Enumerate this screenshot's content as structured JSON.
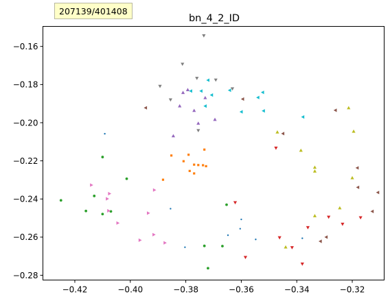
{
  "badge": {
    "text": "207139/401408"
  },
  "chart_data": {
    "type": "scatter",
    "title": "bn_4_2_ID",
    "xlabel": "",
    "ylabel": "",
    "xlim": [
      -0.4315,
      -0.3085
    ],
    "ylim": [
      -0.2825,
      -0.1495
    ],
    "xticks": [
      -0.42,
      -0.4,
      -0.38,
      -0.36,
      -0.34,
      -0.32
    ],
    "xtick_labels": [
      "−0.42",
      "−0.40",
      "−0.38",
      "−0.36",
      "−0.34",
      "−0.32"
    ],
    "yticks": [
      -0.16,
      -0.18,
      -0.2,
      -0.22,
      -0.24,
      -0.26,
      -0.28
    ],
    "ytick_labels": [
      "−0.16",
      "−0.18",
      "−0.20",
      "−0.22",
      "−0.24",
      "−0.26",
      "−0.28"
    ],
    "grid": false,
    "legend": "none",
    "series": [
      {
        "color": "#1f77b4",
        "marker": "point",
        "points": [
          [
            -0.4092,
            -0.2058
          ],
          [
            -0.3855,
            -0.2451
          ],
          [
            -0.3803,
            -0.2653
          ],
          [
            -0.3648,
            -0.259
          ],
          [
            -0.36,
            -0.2507
          ],
          [
            -0.3604,
            -0.2556
          ],
          [
            -0.3548,
            -0.2612
          ],
          [
            -0.338,
            -0.2606
          ]
        ]
      },
      {
        "color": "#ff7f0e",
        "marker": "square",
        "points": [
          [
            -0.3852,
            -0.2172
          ],
          [
            -0.3808,
            -0.2202
          ],
          [
            -0.379,
            -0.2168
          ],
          [
            -0.377,
            -0.222
          ],
          [
            -0.3755,
            -0.2222
          ],
          [
            -0.3738,
            -0.2223
          ],
          [
            -0.3733,
            -0.2141
          ],
          [
            -0.3727,
            -0.2228
          ],
          [
            -0.3786,
            -0.2253
          ],
          [
            -0.377,
            -0.2266
          ],
          [
            -0.3882,
            -0.2299
          ]
        ]
      },
      {
        "color": "#2ca02c",
        "marker": "circle",
        "points": [
          [
            -0.425,
            -0.2407
          ],
          [
            -0.416,
            -0.2463
          ],
          [
            -0.413,
            -0.2384
          ],
          [
            -0.41,
            -0.218
          ],
          [
            -0.41,
            -0.2479
          ],
          [
            -0.407,
            -0.2465
          ],
          [
            -0.4013,
            -0.2294
          ],
          [
            -0.3733,
            -0.2646
          ],
          [
            -0.372,
            -0.2763
          ],
          [
            -0.3653,
            -0.243
          ],
          [
            -0.3668,
            -0.2647
          ]
        ]
      },
      {
        "color": "#d62728",
        "marker": "triangle-down",
        "points": [
          [
            -0.3622,
            -0.2419
          ],
          [
            -0.3585,
            -0.2706
          ],
          [
            -0.3475,
            -0.2133
          ],
          [
            -0.3462,
            -0.2603
          ],
          [
            -0.3417,
            -0.2655
          ],
          [
            -0.338,
            -0.2741
          ],
          [
            -0.336,
            -0.255
          ],
          [
            -0.3285,
            -0.2495
          ],
          [
            -0.3235,
            -0.2532
          ],
          [
            -0.317,
            -0.2498
          ]
        ]
      },
      {
        "color": "#9467bd",
        "marker": "triangle-up",
        "points": [
          [
            -0.3845,
            -0.2069
          ],
          [
            -0.3822,
            -0.1912
          ],
          [
            -0.381,
            -0.1842
          ],
          [
            -0.3793,
            -0.1827
          ],
          [
            -0.377,
            -0.1936
          ],
          [
            -0.3755,
            -0.2003
          ],
          [
            -0.373,
            -0.1869
          ],
          [
            -0.3695,
            -0.1983
          ]
        ]
      },
      {
        "color": "#8c564b",
        "marker": "triangle-left",
        "points": [
          [
            -0.3945,
            -0.1922
          ],
          [
            -0.3595,
            -0.1876
          ],
          [
            -0.345,
            -0.2057
          ],
          [
            -0.3261,
            -0.1935
          ],
          [
            -0.3182,
            -0.2237
          ],
          [
            -0.318,
            -0.2339
          ],
          [
            -0.3128,
            -0.2465
          ],
          [
            -0.3108,
            -0.2366
          ],
          [
            -0.3294,
            -0.26
          ],
          [
            -0.3315,
            -0.2622
          ]
        ]
      },
      {
        "color": "#e377c2",
        "marker": "triangle-right",
        "points": [
          [
            -0.414,
            -0.2327
          ],
          [
            -0.4075,
            -0.2372
          ],
          [
            -0.4083,
            -0.2399
          ],
          [
            -0.4078,
            -0.2462
          ],
          [
            -0.4045,
            -0.2526
          ],
          [
            -0.3965,
            -0.2616
          ],
          [
            -0.3935,
            -0.2474
          ],
          [
            -0.3913,
            -0.2353
          ],
          [
            -0.3915,
            -0.2587
          ],
          [
            -0.3875,
            -0.263
          ]
        ]
      },
      {
        "color": "#7f7f7f",
        "marker": "triangle-down",
        "points": [
          [
            -0.3735,
            -0.1544
          ],
          [
            -0.3812,
            -0.1693
          ],
          [
            -0.376,
            -0.1767
          ],
          [
            -0.3692,
            -0.1776
          ],
          [
            -0.3632,
            -0.1822
          ],
          [
            -0.3893,
            -0.1809
          ],
          [
            -0.3855,
            -0.188
          ],
          [
            -0.3755,
            -0.2041
          ]
        ]
      },
      {
        "color": "#bcbd22",
        "marker": "triangle-up",
        "points": [
          [
            -0.347,
            -0.2049
          ],
          [
            -0.3385,
            -0.2145
          ],
          [
            -0.3335,
            -0.2234
          ],
          [
            -0.3335,
            -0.2254
          ],
          [
            -0.3335,
            -0.2488
          ],
          [
            -0.344,
            -0.2652
          ],
          [
            -0.3245,
            -0.2447
          ],
          [
            -0.3213,
            -0.1922
          ],
          [
            -0.3195,
            -0.2045
          ],
          [
            -0.32,
            -0.2289
          ]
        ]
      },
      {
        "color": "#17becf",
        "marker": "triangle-left",
        "points": [
          [
            -0.3782,
            -0.1834
          ],
          [
            -0.3745,
            -0.1834
          ],
          [
            -0.373,
            -0.1913
          ],
          [
            -0.372,
            -0.1777
          ],
          [
            -0.3707,
            -0.1855
          ],
          [
            -0.3642,
            -0.183
          ],
          [
            -0.36,
            -0.1943
          ],
          [
            -0.354,
            -0.1868
          ],
          [
            -0.3523,
            -0.1841
          ],
          [
            -0.352,
            -0.1938
          ],
          [
            -0.3378,
            -0.197
          ]
        ]
      }
    ]
  }
}
